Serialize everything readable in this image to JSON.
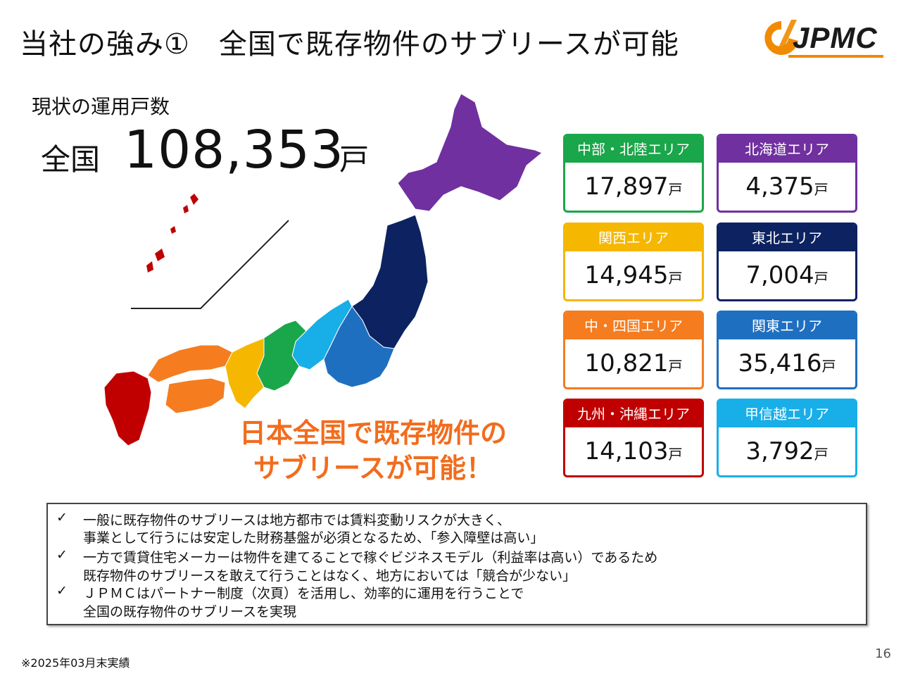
{
  "header": {
    "title": "当社の強み①　全国で既存物件のサブリースが可能",
    "logo_text": "JPMC"
  },
  "summary": {
    "subtitle": "現状の運用戸数",
    "total_label": "全国",
    "total_value": "108,353",
    "total_unit": "戸"
  },
  "callout": {
    "line1": "日本全国で既存物件の",
    "line2": "サブリースが可能！"
  },
  "regions": [
    {
      "name": "中部・北陸エリア",
      "value": "17,897",
      "unit": "戸",
      "color": "#1aa64a"
    },
    {
      "name": "北海道エリア",
      "value": "4,375",
      "unit": "戸",
      "color": "#7030a0"
    },
    {
      "name": "関西エリア",
      "value": "14,945",
      "unit": "戸",
      "color": "#f5b700"
    },
    {
      "name": "東北エリア",
      "value": "7,004",
      "unit": "戸",
      "color": "#0d2260"
    },
    {
      "name": "中・四国エリア",
      "value": "10,821",
      "unit": "戸",
      "color": "#f57c1f"
    },
    {
      "name": "関東エリア",
      "value": "35,416",
      "unit": "戸",
      "color": "#1f6fc1"
    },
    {
      "name": "九州・沖縄エリア",
      "value": "14,103",
      "unit": "戸",
      "color": "#c00000"
    },
    {
      "name": "甲信越エリア",
      "value": "3,792",
      "unit": "戸",
      "color": "#18aee8"
    }
  ],
  "notes": {
    "check_mark": "✓",
    "lines": [
      "一般に既存物件のサブリースは地方都市では賃料変動リスクが大きく、",
      "事業として行うには安定した財務基盤が必須となるため、「参入障壁は高い」",
      "一方で賃貸住宅メーカーは物件を建てることで稼ぐビジネスモデル（利益率は高い）であるため",
      "既存物件のサブリースを敢えて行うことはなく、地方においては「競合が少ない」",
      "ＪＰＭＣはパートナー制度（次頁）を活用し、効率的に運用を行うことで",
      "全国の既存物件のサブリースを実現"
    ]
  },
  "footer": {
    "footnote": "※2025年03月末実績",
    "page_number": "16"
  }
}
